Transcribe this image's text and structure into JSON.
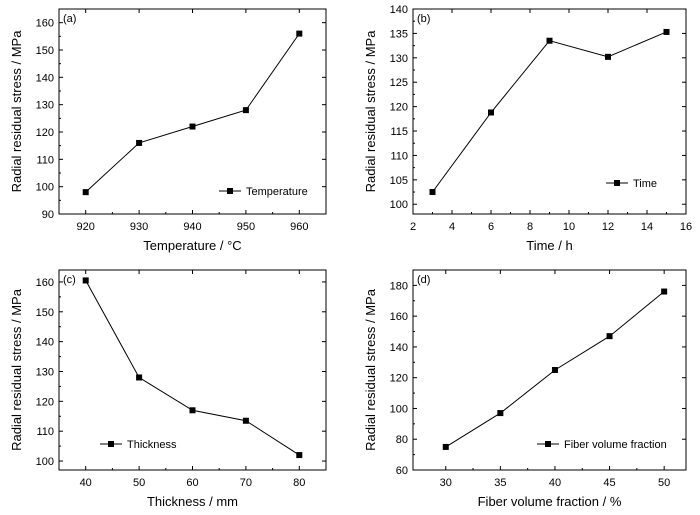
{
  "chart_data": [
    {
      "type": "line",
      "panel_label": "(a)",
      "xlabel": "Temperature / °C",
      "ylabel": "Radial residual stress / MPa",
      "xlim": [
        915,
        965
      ],
      "ylim": [
        90,
        165
      ],
      "xticks": [
        920,
        930,
        940,
        950,
        960
      ],
      "yticks": [
        90,
        100,
        110,
        120,
        130,
        140,
        150,
        160
      ],
      "grid": false,
      "legend_position": "bottom-right",
      "series": [
        {
          "name": "Temperature",
          "marker": "square",
          "x": [
            920,
            930,
            940,
            950,
            960
          ],
          "y": [
            98,
            116,
            122,
            128,
            156
          ]
        }
      ]
    },
    {
      "type": "line",
      "panel_label": "(b)",
      "xlabel": "Time / h",
      "ylabel": "Radial residual stress / MPa",
      "xlim": [
        2,
        16
      ],
      "ylim": [
        98,
        140
      ],
      "xticks": [
        2,
        4,
        6,
        8,
        10,
        12,
        14,
        16
      ],
      "yticks": [
        100,
        105,
        110,
        115,
        120,
        125,
        130,
        135,
        140
      ],
      "grid": false,
      "legend_position": "bottom-right",
      "series": [
        {
          "name": "Time",
          "marker": "square",
          "x": [
            3,
            6,
            9,
            12,
            15
          ],
          "y": [
            102.5,
            118.8,
            133.5,
            130.2,
            135.3
          ]
        }
      ]
    },
    {
      "type": "line",
      "panel_label": "(c)",
      "xlabel": "Thickness / mm",
      "ylabel": "Radial residual stress / MPa",
      "xlim": [
        35,
        85
      ],
      "ylim": [
        97,
        164
      ],
      "xticks": [
        40,
        50,
        60,
        70,
        80
      ],
      "yticks": [
        100,
        110,
        120,
        130,
        140,
        150,
        160
      ],
      "grid": false,
      "legend_position": "bottom-left",
      "series": [
        {
          "name": "Thickness",
          "marker": "square",
          "x": [
            40,
            50,
            60,
            70,
            80
          ],
          "y": [
            160.5,
            128,
            117,
            113.5,
            102
          ]
        }
      ]
    },
    {
      "type": "line",
      "panel_label": "(d)",
      "xlabel": "Fiber volume fraction / %",
      "ylabel": "Radial residual stress / MPa",
      "xlim": [
        27,
        52
      ],
      "ylim": [
        60,
        190
      ],
      "xticks": [
        30,
        35,
        40,
        45,
        50
      ],
      "yticks": [
        60,
        80,
        100,
        120,
        140,
        160,
        180
      ],
      "grid": false,
      "legend_position": "bottom-right",
      "series": [
        {
          "name": "Fiber volume fraction",
          "marker": "square",
          "x": [
            30,
            35,
            40,
            45,
            50
          ],
          "y": [
            75,
            97,
            125,
            147,
            176
          ]
        }
      ]
    }
  ]
}
